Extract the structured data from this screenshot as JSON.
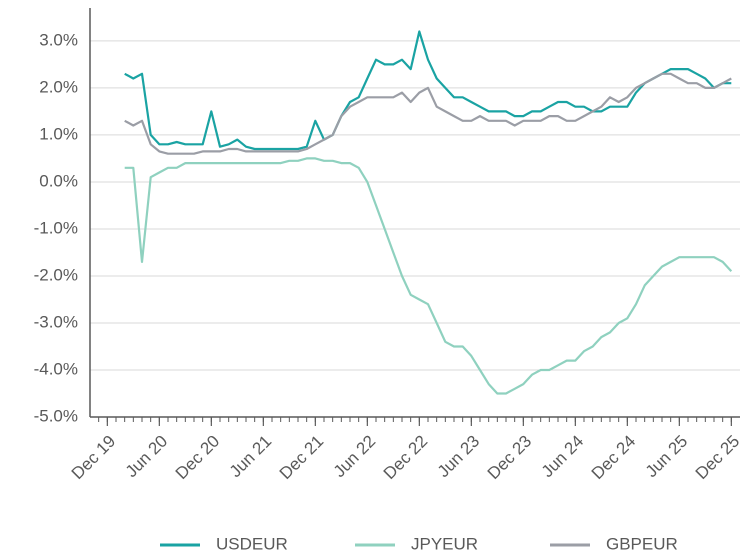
{
  "chart_data": {
    "type": "line",
    "x": [
      "2020-02",
      "2020-03",
      "2020-04",
      "2020-05",
      "2020-06",
      "2020-07",
      "2020-08",
      "2020-09",
      "2020-10",
      "2020-11",
      "2020-12",
      "2021-01",
      "2021-02",
      "2021-03",
      "2021-04",
      "2021-05",
      "2021-06",
      "2021-07",
      "2021-08",
      "2021-09",
      "2021-10",
      "2021-11",
      "2021-12",
      "2022-01",
      "2022-02",
      "2022-03",
      "2022-04",
      "2022-05",
      "2022-06",
      "2022-07",
      "2022-08",
      "2022-09",
      "2022-10",
      "2022-11",
      "2022-12",
      "2023-01",
      "2023-02",
      "2023-03",
      "2023-04",
      "2023-05",
      "2023-06",
      "2023-07",
      "2023-08",
      "2023-09",
      "2023-10",
      "2023-11",
      "2023-12",
      "2024-01",
      "2024-02",
      "2024-03",
      "2024-04",
      "2024-05",
      "2024-06",
      "2024-07",
      "2024-08",
      "2024-09",
      "2024-10",
      "2024-11",
      "2024-12",
      "2025-01",
      "2025-02",
      "2025-03",
      "2025-04",
      "2025-05",
      "2025-06",
      "2025-07",
      "2025-08",
      "2025-09",
      "2025-10",
      "2025-11",
      "2025-12"
    ],
    "series": [
      {
        "name": "USDEUR",
        "color": "#1aa3a3",
        "values": [
          2.3,
          2.2,
          2.3,
          1.0,
          0.8,
          0.8,
          0.85,
          0.8,
          0.8,
          0.8,
          1.5,
          0.75,
          0.8,
          0.9,
          0.75,
          0.7,
          0.7,
          0.7,
          0.7,
          0.7,
          0.7,
          0.75,
          1.3,
          0.9,
          1.0,
          1.4,
          1.7,
          1.8,
          2.2,
          2.6,
          2.5,
          2.5,
          2.6,
          2.4,
          3.2,
          2.6,
          2.2,
          2.0,
          1.8,
          1.8,
          1.7,
          1.6,
          1.5,
          1.5,
          1.5,
          1.4,
          1.4,
          1.5,
          1.5,
          1.6,
          1.7,
          1.7,
          1.6,
          1.6,
          1.5,
          1.5,
          1.6,
          1.6,
          1.6,
          1.9,
          2.1,
          2.2,
          2.3,
          2.4,
          2.4,
          2.4,
          2.3,
          2.2,
          2.0,
          2.1,
          2.1
        ]
      },
      {
        "name": "JPYEUR",
        "color": "#8fd1bf",
        "values": [
          0.3,
          0.3,
          -1.7,
          0.1,
          0.2,
          0.3,
          0.3,
          0.4,
          0.4,
          0.4,
          0.4,
          0.4,
          0.4,
          0.4,
          0.4,
          0.4,
          0.4,
          0.4,
          0.4,
          0.45,
          0.45,
          0.5,
          0.5,
          0.45,
          0.45,
          0.4,
          0.4,
          0.3,
          0.0,
          -0.5,
          -1.0,
          -1.5,
          -2.0,
          -2.4,
          -2.5,
          -2.6,
          -3.0,
          -3.4,
          -3.5,
          -3.5,
          -3.7,
          -4.0,
          -4.3,
          -4.5,
          -4.5,
          -4.4,
          -4.3,
          -4.1,
          -4.0,
          -4.0,
          -3.9,
          -3.8,
          -3.8,
          -3.6,
          -3.5,
          -3.3,
          -3.2,
          -3.0,
          -2.9,
          -2.6,
          -2.2,
          -2.0,
          -1.8,
          -1.7,
          -1.6,
          -1.6,
          -1.6,
          -1.6,
          -1.6,
          -1.7,
          -1.9
        ]
      },
      {
        "name": "GBPEUR",
        "color": "#9b9ea6",
        "values": [
          1.3,
          1.2,
          1.3,
          0.8,
          0.65,
          0.6,
          0.6,
          0.6,
          0.6,
          0.65,
          0.65,
          0.65,
          0.7,
          0.7,
          0.65,
          0.65,
          0.65,
          0.65,
          0.65,
          0.65,
          0.65,
          0.7,
          0.8,
          0.9,
          1.0,
          1.4,
          1.6,
          1.7,
          1.8,
          1.8,
          1.8,
          1.8,
          1.9,
          1.7,
          1.9,
          2.0,
          1.6,
          1.5,
          1.4,
          1.3,
          1.3,
          1.4,
          1.3,
          1.3,
          1.3,
          1.2,
          1.3,
          1.3,
          1.3,
          1.4,
          1.4,
          1.3,
          1.3,
          1.4,
          1.5,
          1.6,
          1.8,
          1.7,
          1.8,
          2.0,
          2.1,
          2.2,
          2.3,
          2.3,
          2.2,
          2.1,
          2.1,
          2.0,
          2.0,
          2.1,
          2.2
        ]
      }
    ],
    "xlim": [
      "2019-10",
      "2026-01"
    ],
    "xticks": [
      {
        "value": "2019-12",
        "label": "Dec 19"
      },
      {
        "value": "2020-06",
        "label": "Jun 20"
      },
      {
        "value": "2020-12",
        "label": "Dec 20"
      },
      {
        "value": "2021-06",
        "label": "Jun 21"
      },
      {
        "value": "2021-12",
        "label": "Dec 21"
      },
      {
        "value": "2022-06",
        "label": "Jun 22"
      },
      {
        "value": "2022-12",
        "label": "Dec 22"
      },
      {
        "value": "2023-06",
        "label": "Jun 23"
      },
      {
        "value": "2023-12",
        "label": "Dec 23"
      },
      {
        "value": "2024-06",
        "label": "Jun 24"
      },
      {
        "value": "2024-12",
        "label": "Dec 24"
      },
      {
        "value": "2025-06",
        "label": "Jun 25"
      },
      {
        "value": "2025-12",
        "label": "Dec 25"
      }
    ],
    "ylim": [
      -5,
      3.7
    ],
    "yticks": [
      {
        "value": 3,
        "label": "3.0%"
      },
      {
        "value": 2,
        "label": "2.0%"
      },
      {
        "value": 1,
        "label": "1.0%"
      },
      {
        "value": 0,
        "label": "0.0%"
      },
      {
        "value": -1,
        "label": "-1.0%"
      },
      {
        "value": -2,
        "label": "-2.0%"
      },
      {
        "value": -3,
        "label": "-3.0%"
      },
      {
        "value": -4,
        "label": "-4.0%"
      },
      {
        "value": -5,
        "label": "-5.0%"
      }
    ],
    "grid": true,
    "legend": "bottom"
  }
}
